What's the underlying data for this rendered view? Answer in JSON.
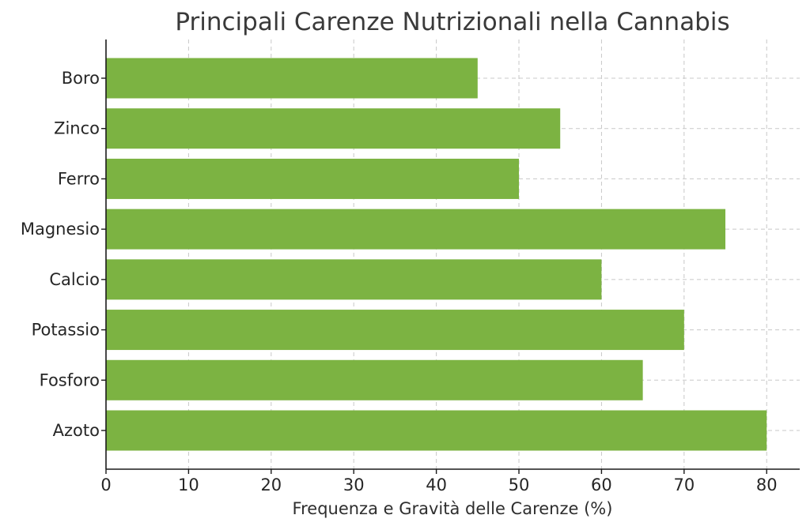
{
  "chart_data": {
    "type": "bar",
    "orientation": "horizontal",
    "title": "Principali Carenze Nutrizionali nella Cannabis",
    "xlabel": "Frequenza e Gravità delle Carenze (%)",
    "ylabel": "",
    "categories": [
      "Azoto",
      "Fosforo",
      "Potassio",
      "Calcio",
      "Magnesio",
      "Ferro",
      "Zinco",
      "Boro"
    ],
    "values": [
      80,
      65,
      70,
      60,
      75,
      50,
      55,
      45
    ],
    "xlim": [
      0,
      84
    ],
    "xticks": [
      0,
      10,
      20,
      30,
      40,
      50,
      60,
      70,
      80
    ],
    "grid": true,
    "bar_color": "#7cb342"
  }
}
